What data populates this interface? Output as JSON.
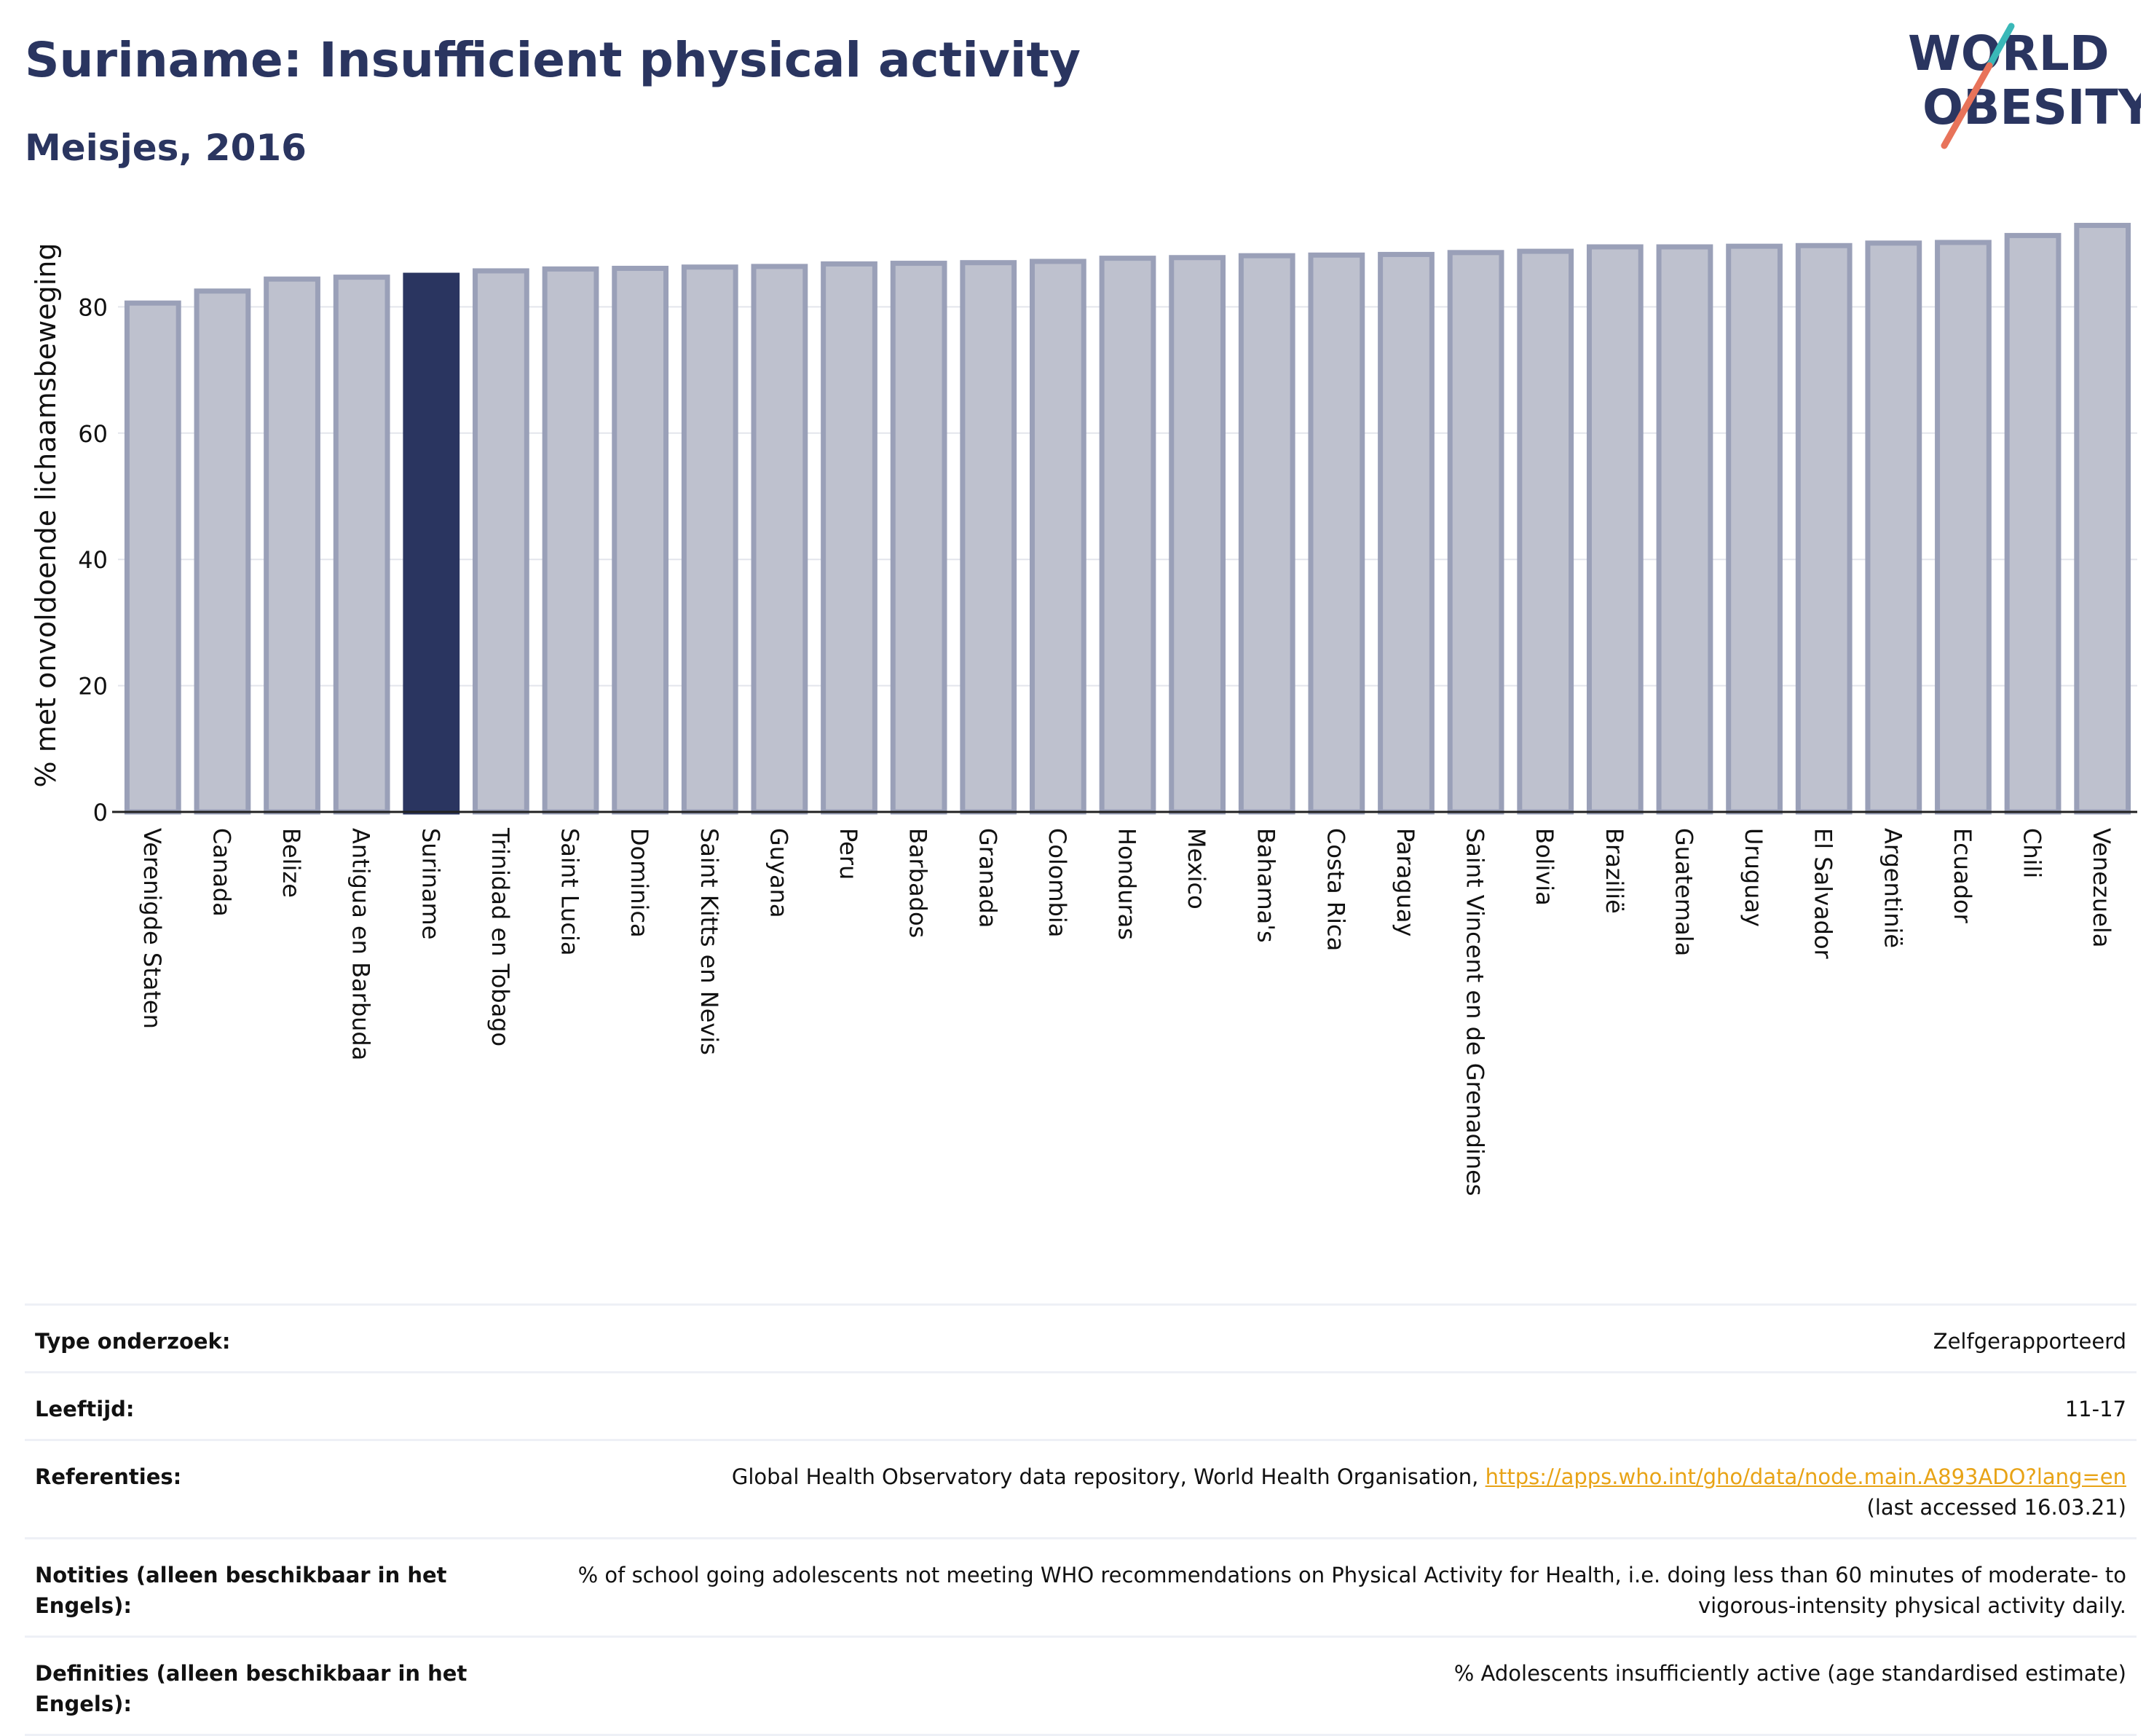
{
  "header": {
    "title": "Suriname: Insufficient physical activity",
    "subtitle": "Meisjes, 2016"
  },
  "logo": {
    "line1": "WORLD",
    "line2": "OBESITY"
  },
  "colors": {
    "highlight": "#2a3560",
    "bar": "#bec1ce",
    "bar_border": "#9aa0b8",
    "link": "#e8a316",
    "title": "#2a3560"
  },
  "chart_data": {
    "type": "bar",
    "ylabel": "% met onvoldoende lichaamsbeweging",
    "ylim": [
      0,
      94
    ],
    "yticks": [
      0,
      20,
      40,
      60,
      80
    ],
    "grid": true,
    "highlight": "Suriname",
    "categories": [
      "Verenigde Staten",
      "Canada",
      "Belize",
      "Antigua en Barbuda",
      "Suriname",
      "Trinidad en Tobago",
      "Saint Lucia",
      "Dominica",
      "Saint Kitts en Nevis",
      "Guyana",
      "Peru",
      "Barbados",
      "Granada",
      "Colombia",
      "Honduras",
      "Mexico",
      "Bahama's",
      "Costa Rica",
      "Paraguay",
      "Saint Vincent en de Grenadines",
      "Bolivia",
      "Brazilië",
      "Guatemala",
      "Uruguay",
      "El Salvador",
      "Argentinië",
      "Ecuador",
      "Chili",
      "Venezuela"
    ],
    "values": [
      80.6,
      82.5,
      84.4,
      84.7,
      85.0,
      85.7,
      86.0,
      86.1,
      86.3,
      86.4,
      86.8,
      86.9,
      87.0,
      87.2,
      87.7,
      87.8,
      88.1,
      88.2,
      88.3,
      88.6,
      88.8,
      89.5,
      89.5,
      89.6,
      89.7,
      90.1,
      90.2,
      91.3,
      92.9
    ]
  },
  "info": {
    "rows": [
      {
        "label": "Type onderzoek:",
        "value": "Zelfgerapporteerd"
      },
      {
        "label": "Leeftijd:",
        "value": "11-17"
      }
    ],
    "references": {
      "label": "Referenties:",
      "text": "Global Health Observatory data repository, World Health Organisation, ",
      "link": "https://apps.who.int/gho/data/node.main.A893ADO?lang=en",
      "note": "(last accessed 16.03.21)"
    },
    "notes": {
      "label": "Notities (alleen beschikbaar in het Engels):",
      "value": "% of school going adolescents not meeting WHO recommendations on Physical Activity for Health, i.e. doing less than 60 minutes of moderate- to vigorous-intensity physical activity daily."
    },
    "definitions": {
      "label": "Definities (alleen beschikbaar in het Engels):",
      "value": "% Adolescents insufficiently active (age standardised estimate)"
    }
  }
}
